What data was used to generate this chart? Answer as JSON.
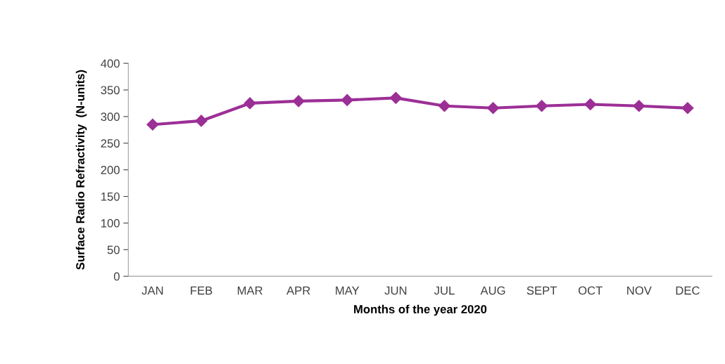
{
  "chart_data": {
    "type": "line",
    "xlabel": "Months of the year 2020",
    "ylabel": "Surface Radio Refractivity  (N-units)",
    "categories": [
      "JAN",
      "FEB",
      "MAR",
      "APR",
      "MAY",
      "JUN",
      "JUL",
      "AUG",
      "SEPT",
      "OCT",
      "NOV",
      "DEC"
    ],
    "series": [
      {
        "color": "#9c2f96",
        "values": [
          285,
          292,
          325,
          329,
          331,
          335,
          320,
          316,
          320,
          323,
          320,
          316
        ]
      }
    ],
    "ylim": [
      0,
      400
    ],
    "yticks": [
      0,
      50,
      100,
      150,
      200,
      250,
      300,
      350,
      400
    ],
    "grid": false,
    "marker": "diamond",
    "line_style": "solid"
  }
}
